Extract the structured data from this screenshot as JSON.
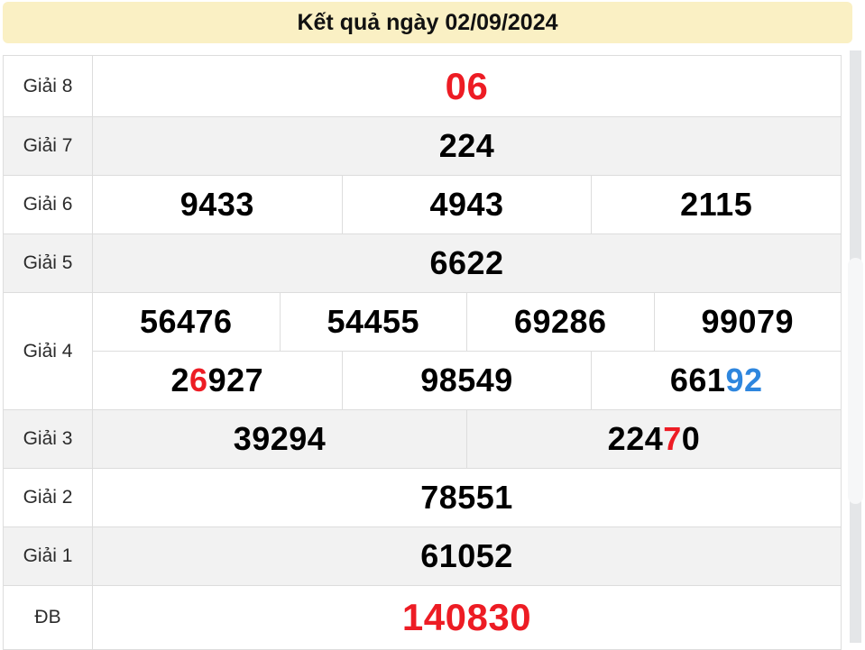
{
  "header": {
    "title": "Kết quả ngày 02/09/2024"
  },
  "table": {
    "rows": [
      {
        "label": "Giải 8",
        "shade": "white",
        "lines": [
          {
            "cells": [
              {
                "size": "xl",
                "parts": [
                  {
                    "text": "06",
                    "color": "red"
                  }
                ]
              }
            ]
          }
        ]
      },
      {
        "label": "Giải 7",
        "shade": "gray",
        "lines": [
          {
            "cells": [
              {
                "parts": [
                  {
                    "text": "224"
                  }
                ]
              }
            ]
          }
        ]
      },
      {
        "label": "Giải 6",
        "shade": "white",
        "lines": [
          {
            "cells": [
              {
                "parts": [
                  {
                    "text": "9433"
                  }
                ]
              },
              {
                "parts": [
                  {
                    "text": "4943"
                  }
                ]
              },
              {
                "parts": [
                  {
                    "text": "2115"
                  }
                ]
              }
            ]
          }
        ]
      },
      {
        "label": "Giải 5",
        "shade": "gray",
        "lines": [
          {
            "cells": [
              {
                "parts": [
                  {
                    "text": "6622"
                  }
                ]
              }
            ]
          }
        ]
      },
      {
        "label": "Giải 4",
        "shade": "white",
        "lines": [
          {
            "cells": [
              {
                "parts": [
                  {
                    "text": "56476"
                  }
                ]
              },
              {
                "parts": [
                  {
                    "text": "54455"
                  }
                ]
              },
              {
                "parts": [
                  {
                    "text": "69286"
                  }
                ]
              },
              {
                "parts": [
                  {
                    "text": "99079"
                  }
                ]
              }
            ]
          },
          {
            "cells": [
              {
                "parts": [
                  {
                    "text": "2"
                  },
                  {
                    "text": "6",
                    "color": "red"
                  },
                  {
                    "text": "927"
                  }
                ]
              },
              {
                "parts": [
                  {
                    "text": "98549"
                  }
                ]
              },
              {
                "parts": [
                  {
                    "text": "661"
                  },
                  {
                    "text": "92",
                    "color": "blue"
                  }
                ]
              }
            ]
          }
        ]
      },
      {
        "label": "Giải 3",
        "shade": "gray",
        "lines": [
          {
            "cells": [
              {
                "parts": [
                  {
                    "text": "39294"
                  }
                ]
              },
              {
                "parts": [
                  {
                    "text": "224"
                  },
                  {
                    "text": "7",
                    "color": "red"
                  },
                  {
                    "text": "0"
                  }
                ]
              }
            ]
          }
        ]
      },
      {
        "label": "Giải 2",
        "shade": "white",
        "lines": [
          {
            "cells": [
              {
                "parts": [
                  {
                    "text": "78551"
                  }
                ]
              }
            ]
          }
        ]
      },
      {
        "label": "Giải 1",
        "shade": "gray",
        "lines": [
          {
            "cells": [
              {
                "parts": [
                  {
                    "text": "61052"
                  }
                ]
              }
            ]
          }
        ]
      },
      {
        "label": "ĐB",
        "shade": "white",
        "lines": [
          {
            "cells": [
              {
                "size": "xl",
                "parts": [
                  {
                    "text": "140830",
                    "color": "red"
                  }
                ]
              }
            ]
          }
        ]
      }
    ]
  },
  "colors": {
    "accent_red": "#ED1C24",
    "accent_blue": "#2E86DE",
    "header_bg": "#FAF0C4",
    "row_alt_bg": "#F2F2F2",
    "border": "#DDDDDD"
  }
}
